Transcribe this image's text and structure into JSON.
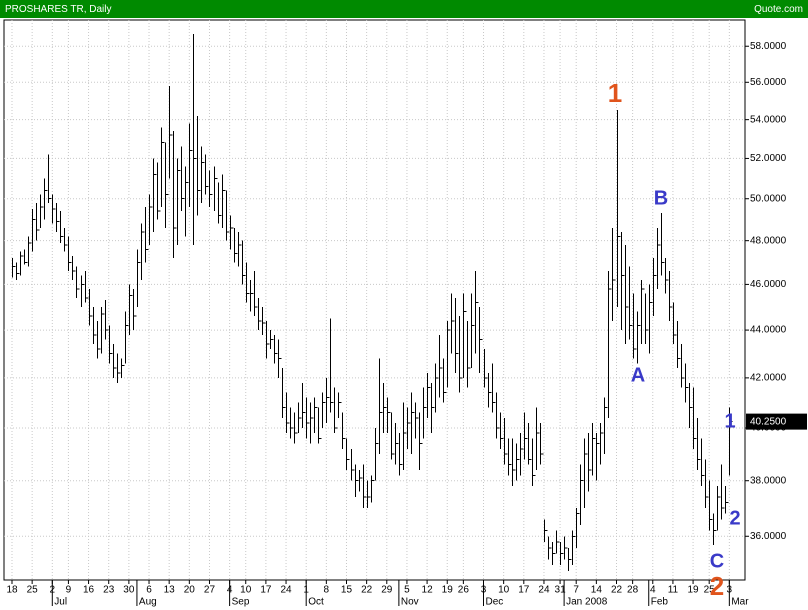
{
  "chart_data": {
    "type": "ohlc",
    "title": "PROSHARES TR, Daily",
    "source": "Quote.com",
    "scale": "log",
    "grid": true,
    "color": "#000000",
    "ylim": [
      34.5,
      59.5
    ],
    "yticks": [
      {
        "value": 36,
        "label": "36.0000"
      },
      {
        "value": 38,
        "label": "38.0000"
      },
      {
        "value": 40,
        "label": "40.0000"
      },
      {
        "value": 42,
        "label": "42.0000"
      },
      {
        "value": 44,
        "label": "44.0000"
      },
      {
        "value": 46,
        "label": "46.0000"
      },
      {
        "value": 48,
        "label": "48.0000"
      },
      {
        "value": 50,
        "label": "50.0000"
      },
      {
        "value": 52,
        "label": "52.0000"
      },
      {
        "value": 54,
        "label": "54.0000"
      },
      {
        "value": 56,
        "label": "56.0000"
      },
      {
        "value": 58,
        "label": "58.0000"
      }
    ],
    "last_price": {
      "value": 40.25,
      "label": "40.2500"
    },
    "categories": [
      "18",
      null,
      null,
      null,
      null,
      "25",
      null,
      null,
      null,
      null,
      "2",
      null,
      null,
      null,
      "9",
      null,
      null,
      null,
      null,
      "16",
      null,
      null,
      null,
      null,
      "23",
      null,
      null,
      null,
      null,
      "30",
      null,
      null,
      null,
      null,
      "6",
      null,
      null,
      null,
      null,
      "13",
      null,
      null,
      null,
      null,
      "20",
      null,
      null,
      null,
      null,
      "27",
      null,
      null,
      null,
      null,
      "4",
      null,
      null,
      null,
      "10",
      null,
      null,
      null,
      null,
      "17",
      null,
      null,
      null,
      null,
      "24",
      null,
      null,
      null,
      null,
      "1",
      null,
      null,
      null,
      null,
      "8",
      null,
      null,
      null,
      null,
      "15",
      null,
      null,
      null,
      null,
      "22",
      null,
      null,
      null,
      null,
      "29",
      null,
      null,
      null,
      null,
      "5",
      null,
      null,
      null,
      null,
      "12",
      null,
      null,
      null,
      null,
      "19",
      null,
      null,
      null,
      "26",
      null,
      null,
      null,
      null,
      "3",
      null,
      null,
      null,
      null,
      "10",
      null,
      null,
      null,
      null,
      "17",
      null,
      null,
      null,
      null,
      "24",
      null,
      null,
      null,
      "31",
      null,
      null,
      null,
      "7",
      null,
      null,
      null,
      null,
      "14",
      null,
      null,
      null,
      null,
      "22",
      null,
      null,
      null,
      "28",
      null,
      null,
      null,
      null,
      "4",
      null,
      null,
      null,
      null,
      "11",
      null,
      null,
      null,
      null,
      "19",
      null,
      null,
      null,
      "25",
      null,
      null,
      null,
      null,
      "3"
    ],
    "months": [
      null,
      null,
      null,
      null,
      null,
      null,
      null,
      null,
      null,
      null,
      "Jul",
      null,
      null,
      null,
      null,
      null,
      null,
      null,
      null,
      null,
      null,
      null,
      null,
      null,
      null,
      null,
      null,
      null,
      null,
      null,
      null,
      "Aug",
      null,
      null,
      null,
      null,
      null,
      null,
      null,
      null,
      null,
      null,
      null,
      null,
      null,
      null,
      null,
      null,
      null,
      null,
      null,
      null,
      null,
      null,
      "Sep",
      null,
      null,
      null,
      null,
      null,
      null,
      null,
      null,
      null,
      null,
      null,
      null,
      null,
      null,
      null,
      null,
      null,
      null,
      "Oct",
      null,
      null,
      null,
      null,
      null,
      null,
      null,
      null,
      null,
      null,
      null,
      null,
      null,
      null,
      null,
      null,
      null,
      null,
      null,
      null,
      null,
      null,
      "Nov",
      null,
      null,
      null,
      null,
      null,
      null,
      null,
      null,
      null,
      null,
      null,
      null,
      null,
      null,
      null,
      null,
      null,
      null,
      null,
      null,
      "Dec",
      null,
      null,
      null,
      null,
      null,
      null,
      null,
      null,
      null,
      null,
      null,
      null,
      null,
      null,
      null,
      null,
      null,
      null,
      null,
      "Jan 2008",
      null,
      null,
      null,
      null,
      null,
      null,
      null,
      null,
      null,
      null,
      null,
      null,
      null,
      null,
      null,
      null,
      null,
      null,
      null,
      null,
      "Feb",
      null,
      null,
      null,
      null,
      null,
      null,
      null,
      null,
      null,
      null,
      null,
      null,
      null,
      null,
      null,
      null,
      null,
      null,
      null,
      "Mar"
    ],
    "high": [
      47.2,
      47.0,
      47.5,
      47.6,
      48.2,
      49.5,
      49.8,
      50.2,
      51.0,
      52.2,
      50.2,
      49.8,
      49.4,
      48.6,
      48.2,
      47.3,
      46.8,
      46.4,
      46.6,
      45.8,
      45.0,
      44.4,
      45.0,
      45.3,
      44.2,
      43.4,
      43.0,
      42.8,
      44.8,
      46.0,
      45.8,
      47.6,
      48.8,
      49.6,
      50.2,
      52.0,
      51.8,
      53.6,
      52.8,
      55.8,
      53.4,
      52.0,
      52.6,
      51.6,
      53.8,
      58.7,
      54.2,
      52.6,
      52.2,
      51.4,
      51.6,
      50.8,
      51.2,
      50.4,
      49.2,
      48.6,
      48.4,
      48.0,
      47.0,
      46.2,
      46.6,
      45.4,
      45.0,
      44.4,
      44.0,
      43.8,
      43.6,
      42.4,
      41.4,
      40.8,
      40.6,
      41.0,
      41.8,
      41.2,
      41.0,
      41.2,
      40.8,
      41.4,
      42.0,
      44.5,
      41.6,
      41.4,
      40.6,
      39.6,
      39.2,
      38.6,
      38.4,
      38.6,
      38.0,
      38.2,
      40.0,
      42.8,
      41.8,
      41.2,
      40.6,
      40.2,
      39.8,
      41.0,
      40.8,
      41.4,
      41.0,
      40.6,
      41.6,
      42.2,
      41.8,
      42.6,
      43.8,
      42.8,
      44.4,
      45.6,
      45.4,
      44.6,
      45.6,
      44.4,
      45.6,
      46.6,
      45.0,
      43.2,
      42.2,
      42.6,
      41.4,
      40.6,
      40.4,
      39.6,
      39.6,
      39.4,
      39.8,
      40.6,
      40.2,
      39.6,
      40.8,
      40.2,
      36.6,
      36.0,
      35.8,
      36.2,
      35.8,
      36.0,
      35.6,
      36.2,
      37.0,
      38.6,
      39.6,
      39.8,
      40.2,
      39.8,
      40.2,
      41.2,
      46.6,
      48.6,
      54.5,
      48.4,
      47.8,
      46.8,
      45.6,
      44.8,
      46.2,
      45.6,
      46.0,
      47.2,
      48.6,
      49.3,
      47.2,
      46.6,
      45.2,
      44.4,
      43.4,
      42.6,
      41.8,
      41.6,
      40.4,
      39.6,
      38.8,
      38.0,
      36.8,
      37.8,
      38.6,
      37.8,
      40.8
    ],
    "low": [
      46.3,
      46.2,
      46.4,
      46.9,
      46.8,
      47.5,
      48.0,
      48.6,
      49.0,
      49.8,
      48.8,
      48.4,
      47.9,
      47.5,
      46.6,
      46.2,
      45.4,
      45.0,
      45.2,
      44.2,
      43.4,
      42.8,
      43.0,
      43.6,
      42.6,
      42.0,
      41.8,
      42.0,
      42.6,
      43.8,
      44.0,
      45.0,
      46.2,
      47.0,
      47.8,
      48.4,
      49.0,
      49.6,
      48.6,
      51.0,
      47.2,
      47.8,
      49.4,
      48.2,
      49.6,
      47.8,
      49.2,
      49.8,
      50.2,
      49.6,
      49.4,
      48.8,
      48.6,
      48.0,
      47.6,
      47.0,
      46.8,
      46.0,
      45.2,
      44.8,
      44.6,
      44.0,
      43.8,
      42.8,
      43.2,
      42.6,
      42.0,
      40.4,
      39.8,
      39.6,
      39.4,
      39.8,
      40.0,
      39.6,
      39.4,
      39.8,
      39.4,
      40.0,
      40.2,
      40.6,
      39.8,
      40.4,
      39.2,
      38.4,
      38.0,
      37.4,
      37.6,
      37.0,
      37.0,
      37.2,
      38.0,
      39.0,
      39.8,
      39.8,
      38.8,
      38.6,
      38.2,
      38.4,
      39.2,
      39.0,
      39.6,
      38.4,
      39.6,
      40.4,
      39.8,
      40.6,
      41.2,
      41.0,
      41.6,
      43.0,
      42.2,
      41.4,
      42.0,
      41.6,
      42.4,
      43.0,
      42.2,
      41.6,
      40.8,
      40.6,
      39.6,
      39.2,
      38.6,
      38.2,
      37.8,
      38.0,
      38.2,
      38.8,
      38.6,
      37.8,
      38.4,
      38.6,
      35.8,
      35.2,
      35.0,
      35.4,
      35.0,
      35.2,
      34.8,
      35.0,
      35.6,
      36.4,
      37.0,
      37.6,
      38.2,
      38.0,
      38.6,
      39.0,
      40.4,
      44.4,
      45.0,
      44.0,
      43.4,
      43.6,
      42.8,
      42.6,
      43.4,
      43.4,
      43.0,
      44.6,
      45.8,
      46.4,
      45.6,
      44.4,
      43.4,
      42.4,
      41.6,
      41.0,
      40.0,
      39.2,
      38.4,
      37.8,
      37.0,
      36.2,
      35.7,
      36.2,
      36.6,
      36.8,
      38.2
    ],
    "close": [
      46.8,
      46.5,
      47.3,
      47.0,
      47.9,
      49.0,
      48.5,
      49.6,
      50.4,
      50.0,
      49.5,
      48.9,
      48.2,
      47.8,
      47.0,
      46.6,
      45.8,
      46.0,
      45.4,
      44.6,
      43.8,
      43.2,
      44.7,
      44.0,
      43.0,
      42.4,
      42.2,
      42.5,
      44.2,
      45.5,
      44.6,
      47.0,
      48.4,
      47.6,
      49.6,
      51.2,
      49.4,
      52.8,
      50.2,
      53.2,
      48.6,
      51.4,
      50.0,
      50.8,
      52.4,
      52.0,
      50.4,
      51.8,
      50.6,
      50.2,
      51.0,
      49.2,
      50.4,
      48.4,
      48.6,
      47.4,
      47.8,
      46.4,
      45.6,
      45.6,
      45.0,
      44.4,
      44.3,
      43.4,
      43.6,
      43.0,
      42.8,
      40.8,
      40.2,
      40.0,
      39.8,
      40.4,
      40.6,
      40.2,
      40.4,
      40.8,
      39.6,
      41.0,
      41.2,
      41.0,
      40.0,
      41.0,
      39.6,
      38.8,
      38.4,
      38.0,
      38.1,
      37.4,
      37.4,
      38.0,
      39.4,
      40.6,
      40.8,
      40.6,
      39.0,
      39.4,
      38.6,
      39.8,
      40.2,
      40.6,
      40.4,
      39.4,
      40.8,
      41.6,
      40.8,
      42.0,
      42.4,
      41.4,
      44.0,
      44.4,
      43.0,
      42.0,
      44.8,
      42.4,
      44.2,
      45.2,
      43.6,
      42.0,
      41.4,
      41.0,
      40.0,
      39.6,
      39.0,
      38.6,
      38.4,
      38.8,
      39.2,
      39.6,
      38.8,
      38.2,
      39.8,
      39.0,
      36.2,
      35.6,
      35.4,
      35.8,
      35.4,
      35.6,
      35.2,
      36.0,
      36.8,
      38.0,
      39.0,
      38.4,
      39.6,
      39.4,
      39.8,
      40.8,
      45.8,
      46.2,
      48.2,
      46.4,
      45.0,
      44.2,
      43.2,
      44.2,
      45.8,
      44.0,
      45.2,
      46.4,
      47.8,
      47.0,
      46.2,
      45.0,
      43.8,
      42.8,
      42.0,
      41.6,
      40.8,
      39.6,
      38.8,
      38.2,
      37.4,
      36.6,
      36.2,
      37.4,
      37.0,
      37.2,
      40.25
    ],
    "annotations": [
      {
        "text": "1",
        "color": "#e0541c"
      },
      {
        "text": "B",
        "color": "#3a3ac8"
      },
      {
        "text": "A",
        "color": "#3a3ac8"
      },
      {
        "text": "1",
        "color": "#3a3ac8"
      },
      {
        "text": "2",
        "color": "#3a3ac8"
      },
      {
        "text": "C",
        "color": "#3a3ac8"
      },
      {
        "text": "2",
        "color": "#e0541c"
      }
    ]
  }
}
